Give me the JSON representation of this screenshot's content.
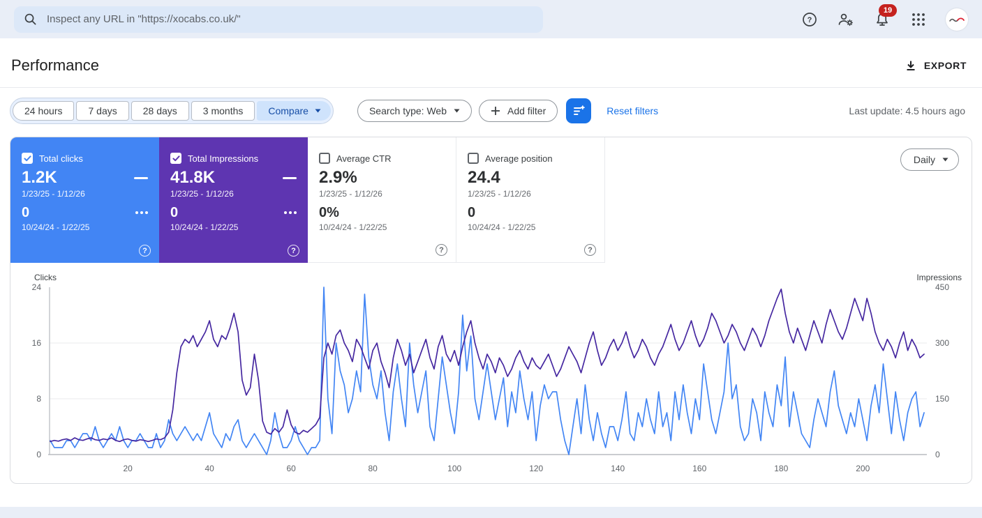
{
  "topbar": {
    "search_placeholder": "Inspect any URL in \"https://xocabs.co.uk/\"",
    "notification_count": "19"
  },
  "header": {
    "title": "Performance",
    "export_label": "EXPORT"
  },
  "filters": {
    "date_tabs": [
      "24 hours",
      "7 days",
      "28 days",
      "3 months"
    ],
    "compare_label": "Compare",
    "search_type_label": "Search type: Web",
    "add_filter_label": "Add filter",
    "reset_label": "Reset filters",
    "last_update": "Last update: 4.5 hours ago"
  },
  "cards": [
    {
      "label": "Total clicks",
      "checked": true,
      "color": "#4285f4",
      "value": "1.2K",
      "range1": "1/23/25 - 1/12/26",
      "value2": "0",
      "range2": "10/24/24 - 1/22/25"
    },
    {
      "label": "Total Impressions",
      "checked": true,
      "color": "#5e35b1",
      "value": "41.8K",
      "range1": "1/23/25 - 1/12/26",
      "value2": "0",
      "range2": "10/24/24 - 1/22/25"
    },
    {
      "label": "Average CTR",
      "checked": false,
      "value": "2.9%",
      "range1": "1/23/25 - 1/12/26",
      "value2": "0%",
      "range2": "10/24/24 - 1/22/25"
    },
    {
      "label": "Average position",
      "checked": false,
      "value": "24.4",
      "range1": "1/23/25 - 1/12/26",
      "value2": "0",
      "range2": "10/24/24 - 1/22/25"
    }
  ],
  "chart_controls": {
    "granularity": "Daily"
  },
  "chart_data": {
    "type": "line",
    "title": "",
    "grid": "horizontal",
    "legend_position": "none",
    "left_axis": {
      "label": "Clicks",
      "max": 24,
      "ticks": [
        0,
        8,
        16,
        24
      ]
    },
    "right_axis": {
      "label": "Impressions",
      "max": 450,
      "ticks": [
        0,
        150,
        300,
        450
      ]
    },
    "x_range": [
      1,
      215
    ],
    "xticks": [
      20,
      40,
      60,
      80,
      100,
      120,
      140,
      160,
      180,
      200
    ],
    "series": [
      {
        "name": "Clicks",
        "axis": "left",
        "color": "#4285f4",
        "values": [
          2,
          1,
          1,
          1,
          2,
          2,
          1,
          2,
          3,
          3,
          2,
          4,
          2,
          1,
          2,
          3,
          2,
          4,
          2,
          1,
          2,
          2,
          3,
          2,
          1,
          1,
          3,
          1,
          2,
          5,
          3,
          2,
          3,
          4,
          3,
          2,
          3,
          2,
          4,
          6,
          3,
          2,
          1,
          3,
          2,
          4,
          5,
          2,
          1,
          2,
          3,
          2,
          1,
          0,
          2,
          6,
          3,
          1,
          1,
          2,
          4,
          2,
          1,
          0,
          1,
          1,
          2,
          24,
          8,
          3,
          16,
          12,
          10,
          6,
          8,
          12,
          9,
          23,
          14,
          10,
          8,
          12,
          6,
          2,
          9,
          13,
          8,
          4,
          16,
          10,
          6,
          9,
          12,
          4,
          2,
          8,
          14,
          10,
          6,
          3,
          9,
          20,
          12,
          17,
          8,
          5,
          9,
          13,
          9,
          5,
          8,
          11,
          4,
          9,
          6,
          12,
          8,
          5,
          9,
          2,
          7,
          10,
          8,
          9,
          9,
          5,
          2,
          0,
          4,
          8,
          3,
          10,
          5,
          2,
          6,
          3,
          1,
          4,
          4,
          2,
          5,
          9,
          3,
          2,
          6,
          4,
          8,
          5,
          3,
          9,
          4,
          6,
          2,
          9,
          5,
          10,
          6,
          3,
          8,
          5,
          13,
          9,
          5,
          3,
          6,
          9,
          16,
          8,
          10,
          4,
          2,
          3,
          8,
          6,
          2,
          9,
          6,
          4,
          10,
          7,
          14,
          4,
          9,
          6,
          3,
          2,
          1,
          5,
          8,
          6,
          4,
          9,
          12,
          7,
          5,
          3,
          6,
          4,
          8,
          5,
          2,
          7,
          10,
          6,
          13,
          8,
          3,
          9,
          5,
          2,
          6,
          8,
          9,
          4,
          6
        ]
      },
      {
        "name": "Impressions",
        "axis": "right",
        "color": "#4527a0",
        "values": [
          35,
          38,
          36,
          40,
          42,
          38,
          45,
          40,
          38,
          42,
          45,
          40,
          38,
          42,
          40,
          45,
          38,
          35,
          40,
          42,
          38,
          36,
          40,
          38,
          35,
          38,
          42,
          40,
          45,
          60,
          120,
          220,
          290,
          310,
          300,
          320,
          290,
          310,
          330,
          360,
          310,
          290,
          320,
          310,
          340,
          380,
          330,
          200,
          160,
          180,
          270,
          200,
          90,
          60,
          55,
          70,
          60,
          75,
          120,
          80,
          60,
          55,
          65,
          60,
          70,
          80,
          100,
          260,
          300,
          270,
          320,
          335,
          300,
          280,
          250,
          310,
          290,
          260,
          230,
          280,
          300,
          250,
          220,
          180,
          260,
          310,
          280,
          240,
          270,
          220,
          250,
          280,
          310,
          260,
          230,
          290,
          320,
          270,
          250,
          280,
          240,
          290,
          330,
          360,
          300,
          260,
          230,
          270,
          250,
          220,
          260,
          240,
          210,
          230,
          260,
          280,
          250,
          230,
          260,
          240,
          230,
          250,
          270,
          240,
          210,
          230,
          260,
          290,
          270,
          250,
          220,
          260,
          300,
          330,
          280,
          240,
          260,
          290,
          310,
          280,
          300,
          330,
          290,
          260,
          280,
          310,
          290,
          260,
          240,
          270,
          290,
          320,
          350,
          310,
          280,
          300,
          330,
          360,
          320,
          290,
          310,
          340,
          380,
          360,
          330,
          300,
          320,
          350,
          330,
          300,
          280,
          310,
          340,
          320,
          290,
          320,
          360,
          390,
          420,
          445,
          380,
          330,
          300,
          340,
          310,
          280,
          320,
          360,
          330,
          300,
          350,
          390,
          360,
          330,
          310,
          340,
          380,
          420,
          390,
          360,
          420,
          380,
          330,
          300,
          280,
          310,
          290,
          260,
          300,
          330,
          280,
          310,
          290,
          260,
          270
        ]
      }
    ]
  }
}
